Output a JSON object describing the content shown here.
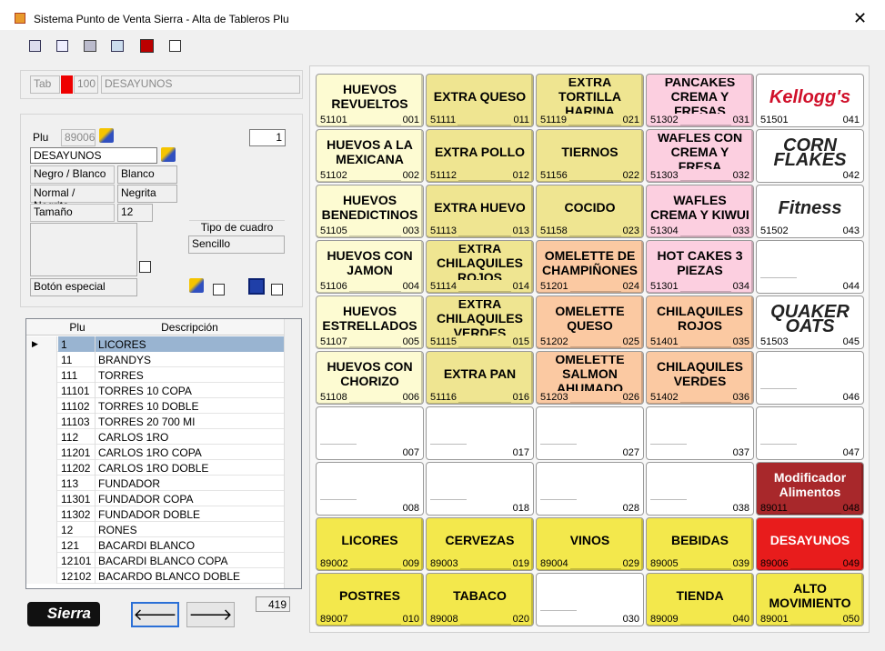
{
  "window": {
    "title": "Sistema Punto de Venta Sierra  -  Alta de Tableros Plu"
  },
  "tab": {
    "label": "Tab",
    "number": "100",
    "name": "DESAYUNOS"
  },
  "form": {
    "plu_label": "Plu",
    "plu_value": "89006",
    "spinner": "1",
    "description": "DESAYUNOS",
    "fields": [
      {
        "label": "Negro / Blanco",
        "value": "Blanco"
      },
      {
        "label": "Normal / Negrita",
        "value": "Negrita"
      },
      {
        "label": "Tamaño",
        "value": "12"
      }
    ],
    "tipo_label": "Tipo de cuadro",
    "tipo_value": "Sencillo",
    "especial": "Botón especial"
  },
  "table": {
    "headers": [
      "Plu",
      "Descripción"
    ],
    "rows": [
      [
        "1",
        "LICORES"
      ],
      [
        "11",
        "BRANDYS"
      ],
      [
        "111",
        "TORRES"
      ],
      [
        "11101",
        "TORRES 10 COPA"
      ],
      [
        "11102",
        "TORRES 10 DOBLE"
      ],
      [
        "11103",
        "TORRES 20 700 MI"
      ],
      [
        "112",
        "CARLOS 1RO"
      ],
      [
        "11201",
        "CARLOS 1RO COPA"
      ],
      [
        "11202",
        "CARLOS 1RO DOBLE"
      ],
      [
        "113",
        "FUNDADOR"
      ],
      [
        "11301",
        "FUNDADOR COPA"
      ],
      [
        "11302",
        "FUNDADOR DOBLE"
      ],
      [
        "12",
        "RONES"
      ],
      [
        "121",
        "BACARDI BLANCO"
      ],
      [
        "12101",
        "BACARDI BLANCO COPA"
      ],
      [
        "12102",
        "BACARDO BLANCO DOBLE"
      ]
    ]
  },
  "footer": {
    "logo": "Sierra",
    "count": "419"
  },
  "grid": {
    "rows": [
      [
        {
          "label": "HUEVOS REVUELTOS",
          "code": "51101",
          "pos": "001",
          "color": "#fdfbd2"
        },
        {
          "label": "EXTRA QUESO",
          "code": "51111",
          "pos": "011",
          "color": "#efe591"
        },
        {
          "label": "EXTRA TORTILLA HARINA",
          "code": "51119",
          "pos": "021",
          "color": "#efe591"
        },
        {
          "label": "PANCAKES CREMA Y FRESAS",
          "code": "51302",
          "pos": "031",
          "color": "#fccfe0"
        },
        {
          "image": "Kellogg's",
          "code": "51501",
          "pos": "041",
          "color": "#ffffff"
        }
      ],
      [
        {
          "label": "HUEVOS A LA MEXICANA",
          "code": "51102",
          "pos": "002",
          "color": "#fdfbd2"
        },
        {
          "label": "EXTRA POLLO",
          "code": "51112",
          "pos": "012",
          "color": "#efe591"
        },
        {
          "label": "TIERNOS",
          "code": "51156",
          "pos": "022",
          "color": "#efe591"
        },
        {
          "label": "WAFLES CON CREMA Y FRESA",
          "code": "51303",
          "pos": "032",
          "color": "#fccfe0"
        },
        {
          "image": "CORN FLAKES",
          "pos": "042",
          "color": "#ffffff"
        }
      ],
      [
        {
          "label": "HUEVOS BENEDICTINOS",
          "code": "51105",
          "pos": "003",
          "color": "#fdfbd2"
        },
        {
          "label": "EXTRA HUEVO",
          "code": "51113",
          "pos": "013",
          "color": "#efe591"
        },
        {
          "label": "COCIDO",
          "code": "51158",
          "pos": "023",
          "color": "#efe591"
        },
        {
          "label": "WAFLES CREMA Y KIWUI",
          "code": "51304",
          "pos": "033",
          "color": "#fccfe0"
        },
        {
          "image": "Fitness",
          "code": "51502",
          "pos": "043",
          "color": "#ffffff"
        }
      ],
      [
        {
          "label": "HUEVOS CON JAMON",
          "code": "51106",
          "pos": "004",
          "color": "#fdfbd2"
        },
        {
          "label": "EXTRA CHILAQUILES ROJOS",
          "code": "51114",
          "pos": "014",
          "color": "#efe591"
        },
        {
          "label": "OMELETTE DE CHAMPIÑONES",
          "code": "51201",
          "pos": "024",
          "color": "#fbc9a2"
        },
        {
          "label": "HOT CAKES 3 PIEZAS",
          "code": "51301",
          "pos": "034",
          "color": "#fccfe0"
        },
        {
          "pos": "044",
          "color": "#ffffff"
        }
      ],
      [
        {
          "label": "HUEVOS ESTRELLADOS",
          "code": "51107",
          "pos": "005",
          "color": "#fdfbd2"
        },
        {
          "label": "EXTRA CHILAQUILES VERDES",
          "code": "51115",
          "pos": "015",
          "color": "#efe591"
        },
        {
          "label": "OMELETTE QUESO",
          "code": "51202",
          "pos": "025",
          "color": "#fbc9a2"
        },
        {
          "label": "CHILAQUILES ROJOS",
          "code": "51401",
          "pos": "035",
          "color": "#fbc9a2"
        },
        {
          "image": "QUAKER OATS",
          "code": "51503",
          "pos": "045",
          "color": "#ffffff"
        }
      ],
      [
        {
          "label": "HUEVOS CON CHORIZO",
          "code": "51108",
          "pos": "006",
          "color": "#fdfbd2"
        },
        {
          "label": "EXTRA PAN",
          "code": "51116",
          "pos": "016",
          "color": "#efe591"
        },
        {
          "label": "OMELETTE SALMON AHUMADO",
          "code": "51203",
          "pos": "026",
          "color": "#fbc9a2"
        },
        {
          "label": "CHILAQUILES VERDES",
          "code": "51402",
          "pos": "036",
          "color": "#fbc9a2"
        },
        {
          "pos": "046",
          "color": "#ffffff"
        }
      ],
      [
        {
          "pos": "007",
          "color": "#ffffff"
        },
        {
          "pos": "017",
          "color": "#ffffff"
        },
        {
          "pos": "027",
          "color": "#ffffff"
        },
        {
          "pos": "037",
          "color": "#ffffff"
        },
        {
          "pos": "047",
          "color": "#ffffff"
        }
      ],
      [
        {
          "pos": "008",
          "color": "#ffffff"
        },
        {
          "pos": "018",
          "color": "#ffffff"
        },
        {
          "pos": "028",
          "color": "#ffffff"
        },
        {
          "pos": "038",
          "color": "#ffffff"
        },
        {
          "label": "Modificador Alimentos",
          "code": "89011",
          "pos": "048",
          "color": "#a8282b",
          "text": "#ffffff"
        }
      ],
      [
        {
          "label": "LICORES",
          "code": "89002",
          "pos": "009",
          "color": "#f3e84c"
        },
        {
          "label": "CERVEZAS",
          "code": "89003",
          "pos": "019",
          "color": "#f3e84c"
        },
        {
          "label": "VINOS",
          "code": "89004",
          "pos": "029",
          "color": "#f3e84c"
        },
        {
          "label": "BEBIDAS",
          "code": "89005",
          "pos": "039",
          "color": "#f3e84c"
        },
        {
          "label": "DESAYUNOS",
          "code": "89006",
          "pos": "049",
          "color": "#e81c1c",
          "text": "#ffffff"
        }
      ],
      [
        {
          "label": "POSTRES",
          "code": "89007",
          "pos": "010",
          "color": "#f3e84c"
        },
        {
          "label": "TABACO",
          "code": "89008",
          "pos": "020",
          "color": "#f3e84c"
        },
        {
          "pos": "030",
          "color": "#ffffff"
        },
        {
          "label": "TIENDA",
          "code": "89009",
          "pos": "040",
          "color": "#f3e84c"
        },
        {
          "label": "ALTO MOVIMIENTO",
          "code": "89001",
          "pos": "050",
          "color": "#f3e84c"
        }
      ]
    ]
  }
}
